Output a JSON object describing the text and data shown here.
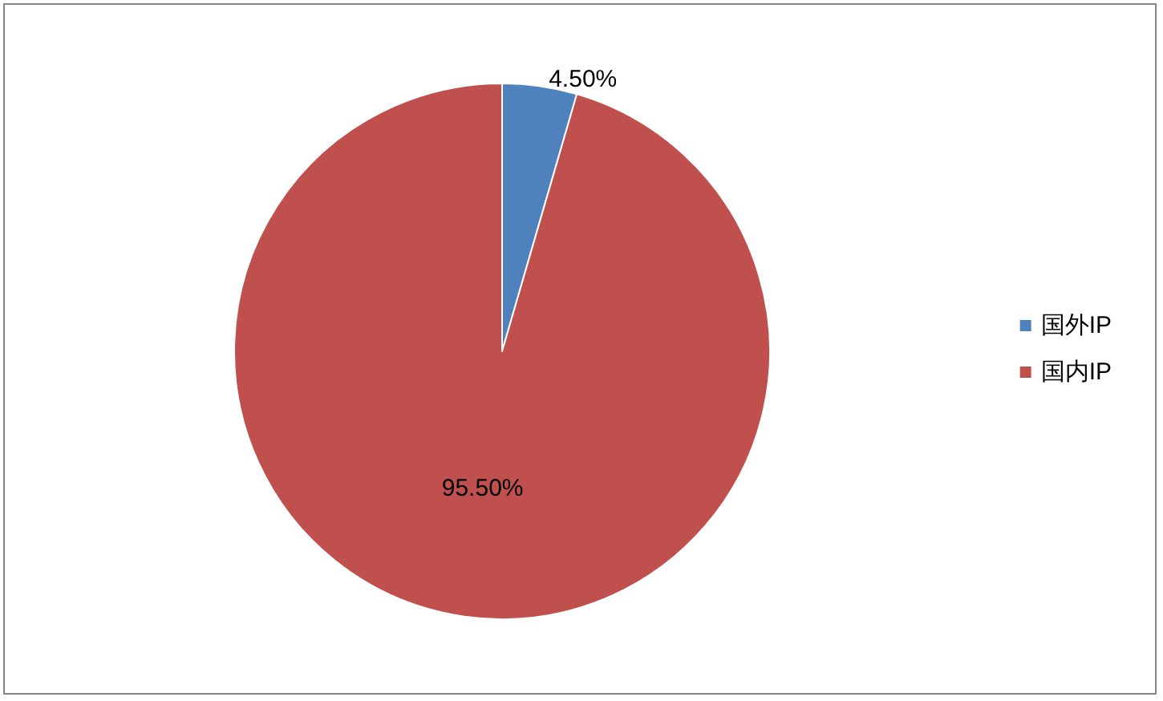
{
  "chart_data": {
    "type": "pie",
    "categories": [
      "国外IP",
      "国内IP"
    ],
    "values": [
      4.5,
      95.5
    ],
    "colors": [
      "#4f81bd",
      "#c0504d"
    ],
    "value_labels": [
      "4.50%",
      "95.50%"
    ],
    "legend": "right"
  }
}
